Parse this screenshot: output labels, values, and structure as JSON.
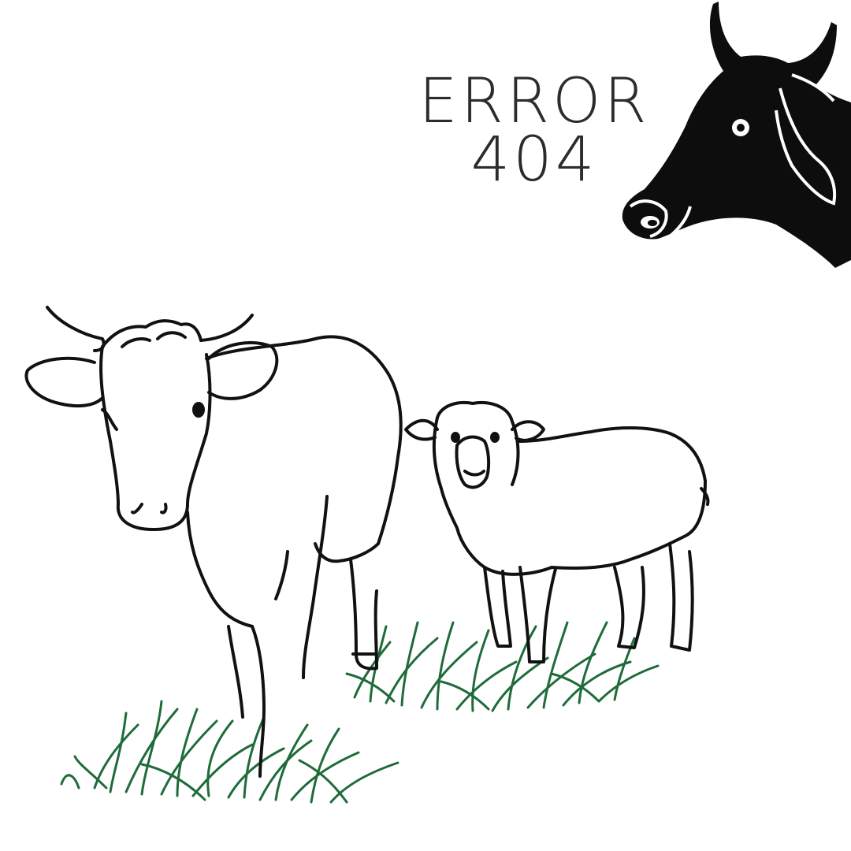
{
  "error": {
    "title": "ERROR",
    "code": "404"
  },
  "colors": {
    "ink": "#111111",
    "text": "#2a2d2c",
    "grass": "#1f6b3a",
    "background": "#ffffff"
  },
  "illustration": {
    "silhouette_icon": "cow-head-silhouette-icon",
    "animals": [
      "cow-icon",
      "sheep-icon"
    ],
    "ground": "grass-icon"
  }
}
